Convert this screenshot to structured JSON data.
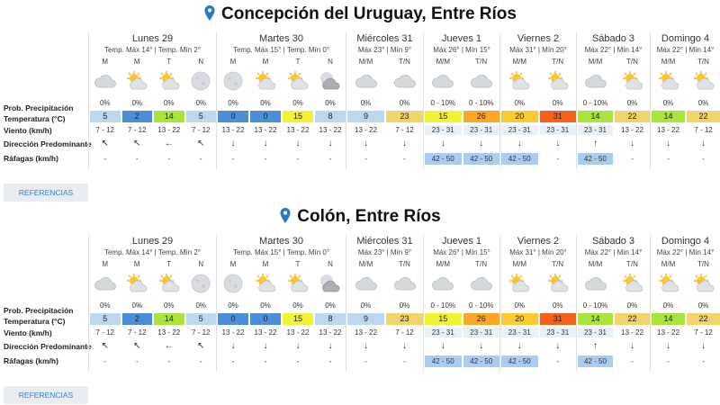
{
  "labels": {
    "prob": "Prob. Precipitación",
    "temp": "Temperatura (°C)",
    "wind": "Viento (km/h)",
    "dir": "Dirección Predominante",
    "gust": "Ráfagas (km/h)"
  },
  "references_label": "REFERENCIAS",
  "colors": {
    "accent_pin": "#2b78c5",
    "cold_dark": "#4d8fd6",
    "cold_light": "#bcd7f0",
    "lime": "#a8e43c",
    "yellow": "#f1f236",
    "mild": "#f3d36b",
    "warm": "#fccb31",
    "hot": "#fba726",
    "orange_red": "#f4611e",
    "gust_blue": "#a9cdf0"
  },
  "locations": [
    {
      "title": "Concepción del Uruguay, Entre Ríos",
      "days": [
        {
          "name": "Lunes 29",
          "tmax": "Temp. Máx 14°",
          "tmin": "Temp. Mín 2°",
          "subs": [
            {
              "p": "M",
              "icon": "cloud-icon",
              "prob": "0%",
              "temp": "5",
              "tc": "#bcd7f0",
              "wind": "7 - 12",
              "dir": "↖",
              "gust": "-"
            },
            {
              "p": "M",
              "icon": "sun-cloud-icon",
              "prob": "0%",
              "temp": "2",
              "tc": "#4d8fd6",
              "wind": "7 - 12",
              "dir": "↖",
              "gust": "-"
            },
            {
              "p": "T",
              "icon": "sun-cloud-icon",
              "prob": "0%",
              "temp": "14",
              "tc": "#a8e43c",
              "wind": "13 - 22",
              "dir": "←",
              "gust": "-"
            },
            {
              "p": "N",
              "icon": "moon-icon",
              "prob": "0%",
              "temp": "5",
              "tc": "#bcd7f0",
              "wind": "7 - 12",
              "dir": "↖",
              "gust": "-"
            }
          ]
        },
        {
          "name": "Martes 30",
          "tmax": "Temp. Máx 15°",
          "tmin": "Temp. Mín 0°",
          "subs": [
            {
              "p": "M",
              "icon": "moon-icon",
              "prob": "0%",
              "temp": "0",
              "tc": "#4d8fd6",
              "wind": "13 - 22",
              "dir": "↓",
              "gust": "-"
            },
            {
              "p": "M",
              "icon": "sun-cloud-icon",
              "prob": "0%",
              "temp": "0",
              "tc": "#4d8fd6",
              "wind": "13 - 22",
              "dir": "↓",
              "gust": "-"
            },
            {
              "p": "T",
              "icon": "sun-cloud-icon",
              "prob": "0%",
              "temp": "15",
              "tc": "#f1f236",
              "wind": "13 - 22",
              "dir": "↓",
              "gust": "-"
            },
            {
              "p": "N",
              "icon": "moon-cloud-icon",
              "prob": "0%",
              "temp": "8",
              "tc": "#bcd7f0",
              "wind": "13 - 22",
              "dir": "↓",
              "gust": "-"
            }
          ]
        },
        {
          "name": "Miércoles 31",
          "tmax": "Máx 23°",
          "tmin": "Mín 9°",
          "subs": [
            {
              "p": "M/M",
              "icon": "cloud-icon",
              "prob": "0%",
              "temp": "9",
              "tc": "#bcd7f0",
              "wind": "13 - 22",
              "dir": "↓",
              "gust": "-"
            },
            {
              "p": "T/N",
              "icon": "cloud-icon",
              "prob": "0%",
              "temp": "23",
              "tc": "#f3d36b",
              "wind": "7 - 12",
              "dir": "↓",
              "gust": "-"
            }
          ]
        },
        {
          "name": "Jueves 1",
          "tmax": "Máx 26°",
          "tmin": "Mín 15°",
          "subs": [
            {
              "p": "M/M",
              "icon": "cloud-icon",
              "prob": "0 - 10%",
              "temp": "15",
              "tc": "#f1f236",
              "wind": "23 - 31",
              "dir": "↓",
              "gust": "42 - 50"
            },
            {
              "p": "T/N",
              "icon": "cloud-icon",
              "prob": "0 - 10%",
              "temp": "26",
              "tc": "#fba726",
              "wind": "23 - 31",
              "dir": "↓",
              "gust": "42 - 50"
            }
          ]
        },
        {
          "name": "Viernes 2",
          "tmax": "Máx 31°",
          "tmin": "Mín 20°",
          "subs": [
            {
              "p": "M/M",
              "icon": "sun-cloud-icon",
              "prob": "0%",
              "temp": "20",
              "tc": "#fccb31",
              "wind": "23 - 31",
              "dir": "↓",
              "gust": "42 - 50"
            },
            {
              "p": "T/N",
              "icon": "sun-cloud-icon",
              "prob": "0%",
              "temp": "31",
              "tc": "#f4611e",
              "wind": "23 - 31",
              "dir": "↓",
              "gust": "-"
            }
          ]
        },
        {
          "name": "Sábado 3",
          "tmax": "Máx 22°",
          "tmin": "Mín 14°",
          "subs": [
            {
              "p": "M/M",
              "icon": "cloud-icon",
              "prob": "0 - 10%",
              "temp": "14",
              "tc": "#a8e43c",
              "wind": "23 - 31",
              "dir": "↑",
              "gust": "42 - 50"
            },
            {
              "p": "T/N",
              "icon": "sun-cloud-icon",
              "prob": "0%",
              "temp": "22",
              "tc": "#f3d36b",
              "wind": "13 - 22",
              "dir": "↓",
              "gust": "-"
            }
          ]
        },
        {
          "name": "Domingo 4",
          "tmax": "Máx 22°",
          "tmin": "Mín 14°",
          "subs": [
            {
              "p": "M/M",
              "icon": "sun-cloud-icon",
              "prob": "0%",
              "temp": "14",
              "tc": "#a8e43c",
              "wind": "13 - 22",
              "dir": "↓",
              "gust": "-"
            },
            {
              "p": "T/N",
              "icon": "sun-cloud-icon",
              "prob": "0%",
              "temp": "22",
              "tc": "#f3d36b",
              "wind": "7 - 12",
              "dir": "↓",
              "gust": "-"
            }
          ]
        }
      ]
    },
    {
      "title": "Colón, Entre Ríos",
      "days": [
        {
          "name": "Lunes 29",
          "tmax": "Temp. Máx 14°",
          "tmin": "Temp. Mín 2°",
          "subs": [
            {
              "p": "M",
              "icon": "cloud-icon",
              "prob": "0%",
              "temp": "5",
              "tc": "#bcd7f0",
              "wind": "7 - 12",
              "dir": "↖",
              "gust": "-"
            },
            {
              "p": "M",
              "icon": "sun-cloud-icon",
              "prob": "0%",
              "temp": "2",
              "tc": "#4d8fd6",
              "wind": "7 - 12",
              "dir": "↖",
              "gust": "-"
            },
            {
              "p": "T",
              "icon": "sun-cloud-icon",
              "prob": "0%",
              "temp": "14",
              "tc": "#a8e43c",
              "wind": "13 - 22",
              "dir": "←",
              "gust": "-"
            },
            {
              "p": "N",
              "icon": "moon-icon",
              "prob": "0%",
              "temp": "5",
              "tc": "#bcd7f0",
              "wind": "7 - 12",
              "dir": "↖",
              "gust": "-"
            }
          ]
        },
        {
          "name": "Martes 30",
          "tmax": "Temp. Máx 15°",
          "tmin": "Temp. Mín 0°",
          "subs": [
            {
              "p": "M",
              "icon": "moon-icon",
              "prob": "0%",
              "temp": "0",
              "tc": "#4d8fd6",
              "wind": "13 - 22",
              "dir": "↓",
              "gust": "-"
            },
            {
              "p": "M",
              "icon": "sun-cloud-icon",
              "prob": "0%",
              "temp": "0",
              "tc": "#4d8fd6",
              "wind": "13 - 22",
              "dir": "↓",
              "gust": "-"
            },
            {
              "p": "T",
              "icon": "sun-cloud-icon",
              "prob": "0%",
              "temp": "15",
              "tc": "#f1f236",
              "wind": "13 - 22",
              "dir": "↓",
              "gust": "-"
            },
            {
              "p": "N",
              "icon": "moon-cloud-icon",
              "prob": "0%",
              "temp": "8",
              "tc": "#bcd7f0",
              "wind": "13 - 22",
              "dir": "↓",
              "gust": "-"
            }
          ]
        },
        {
          "name": "Miércoles 31",
          "tmax": "Máx 23°",
          "tmin": "Mín 9°",
          "subs": [
            {
              "p": "M/M",
              "icon": "cloud-icon",
              "prob": "0%",
              "temp": "9",
              "tc": "#bcd7f0",
              "wind": "13 - 22",
              "dir": "↓",
              "gust": "-"
            },
            {
              "p": "T/N",
              "icon": "cloud-icon",
              "prob": "0%",
              "temp": "23",
              "tc": "#f3d36b",
              "wind": "7 - 12",
              "dir": "↓",
              "gust": "-"
            }
          ]
        },
        {
          "name": "Jueves 1",
          "tmax": "Máx 26°",
          "tmin": "Mín 15°",
          "subs": [
            {
              "p": "M/M",
              "icon": "cloud-icon",
              "prob": "0 - 10%",
              "temp": "15",
              "tc": "#f1f236",
              "wind": "23 - 31",
              "dir": "↓",
              "gust": "42 - 50"
            },
            {
              "p": "T/N",
              "icon": "cloud-icon",
              "prob": "0 - 10%",
              "temp": "26",
              "tc": "#fba726",
              "wind": "23 - 31",
              "dir": "↓",
              "gust": "42 - 50"
            }
          ]
        },
        {
          "name": "Viernes 2",
          "tmax": "Máx 31°",
          "tmin": "Mín 20°",
          "subs": [
            {
              "p": "M/M",
              "icon": "sun-cloud-icon",
              "prob": "0%",
              "temp": "20",
              "tc": "#fccb31",
              "wind": "23 - 31",
              "dir": "↓",
              "gust": "42 - 50"
            },
            {
              "p": "T/N",
              "icon": "sun-cloud-icon",
              "prob": "0%",
              "temp": "31",
              "tc": "#f4611e",
              "wind": "23 - 31",
              "dir": "↓",
              "gust": "-"
            }
          ]
        },
        {
          "name": "Sábado 3",
          "tmax": "Máx 22°",
          "tmin": "Mín 14°",
          "subs": [
            {
              "p": "M/M",
              "icon": "cloud-icon",
              "prob": "0 - 10%",
              "temp": "14",
              "tc": "#a8e43c",
              "wind": "23 - 31",
              "dir": "↑",
              "gust": "42 - 50"
            },
            {
              "p": "T/N",
              "icon": "sun-cloud-icon",
              "prob": "0%",
              "temp": "22",
              "tc": "#f3d36b",
              "wind": "13 - 22",
              "dir": "↓",
              "gust": "-"
            }
          ]
        },
        {
          "name": "Domingo 4",
          "tmax": "Máx 22°",
          "tmin": "Mín 14°",
          "subs": [
            {
              "p": "M/M",
              "icon": "sun-cloud-icon",
              "prob": "0%",
              "temp": "14",
              "tc": "#a8e43c",
              "wind": "13 - 22",
              "dir": "↓",
              "gust": "-"
            },
            {
              "p": "T/N",
              "icon": "sun-cloud-icon",
              "prob": "0%",
              "temp": "22",
              "tc": "#f3d36b",
              "wind": "7 - 12",
              "dir": "↓",
              "gust": "-"
            }
          ]
        }
      ]
    }
  ]
}
